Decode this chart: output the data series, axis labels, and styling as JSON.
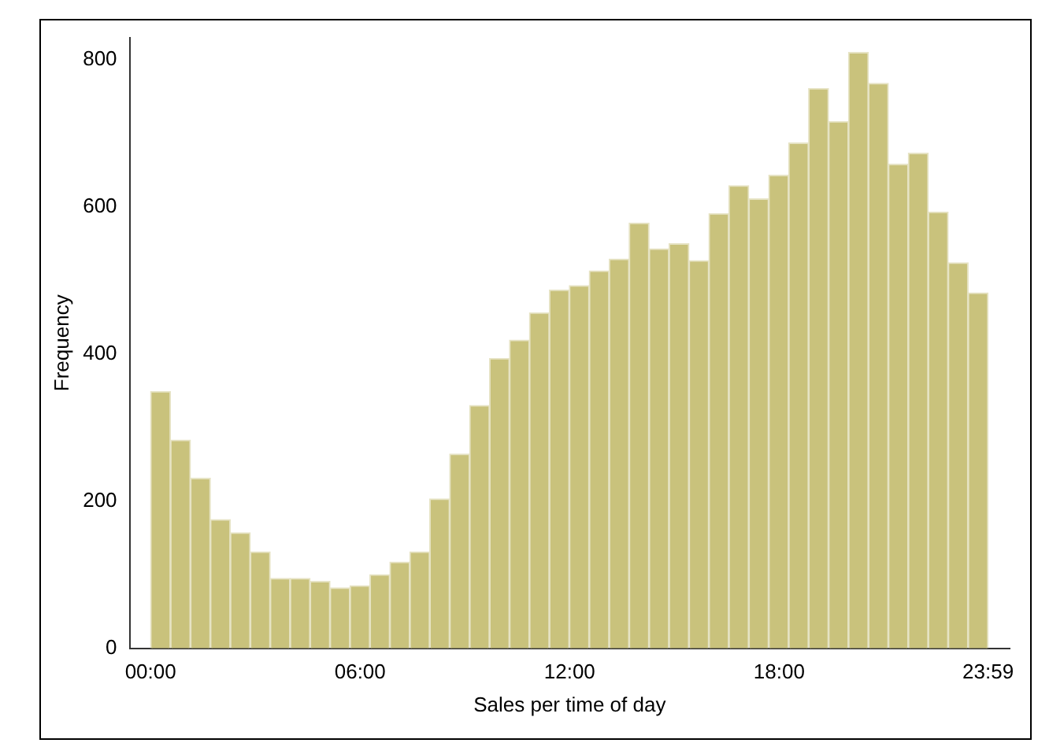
{
  "chart_data": {
    "type": "histogram",
    "xlabel": "Sales per time of day",
    "ylabel": "Frequency",
    "bins": [
      0,
      0.571,
      1.142,
      1.713,
      2.284,
      2.855,
      3.426,
      3.997,
      4.568,
      5.139,
      5.71,
      6.281,
      6.852,
      7.423,
      7.994,
      8.565,
      9.136,
      9.707,
      10.278,
      10.849,
      11.42,
      11.991,
      12.562,
      13.133,
      13.704,
      14.275,
      14.846,
      15.417,
      15.988,
      16.559,
      17.13,
      17.701,
      18.272,
      18.843,
      19.414,
      19.985,
      20.556,
      21.127,
      21.698,
      22.269,
      22.84,
      23.411,
      23.982
    ],
    "values": [
      349,
      283,
      231,
      175,
      157,
      131,
      95,
      95,
      91,
      82,
      85,
      100,
      117,
      131,
      203,
      264,
      330,
      394,
      419,
      456,
      487,
      493,
      513,
      529,
      578,
      543,
      550,
      527,
      591,
      629,
      611,
      643,
      687,
      761,
      716,
      810,
      768,
      658,
      673,
      593,
      524,
      483
    ],
    "color": "#c9c27c",
    "xlim": [
      -0.6,
      24.6
    ],
    "xticks": [
      {
        "value": 0,
        "label": "00:00"
      },
      {
        "value": 6,
        "label": "06:00"
      },
      {
        "value": 12,
        "label": "12:00"
      },
      {
        "value": 18,
        "label": "18:00"
      },
      {
        "value": 23.983,
        "label": "23:59"
      }
    ],
    "ylim": [
      0,
      830
    ],
    "yticks": [
      0,
      200,
      400,
      600,
      800
    ],
    "grid": false,
    "legend": false
  }
}
